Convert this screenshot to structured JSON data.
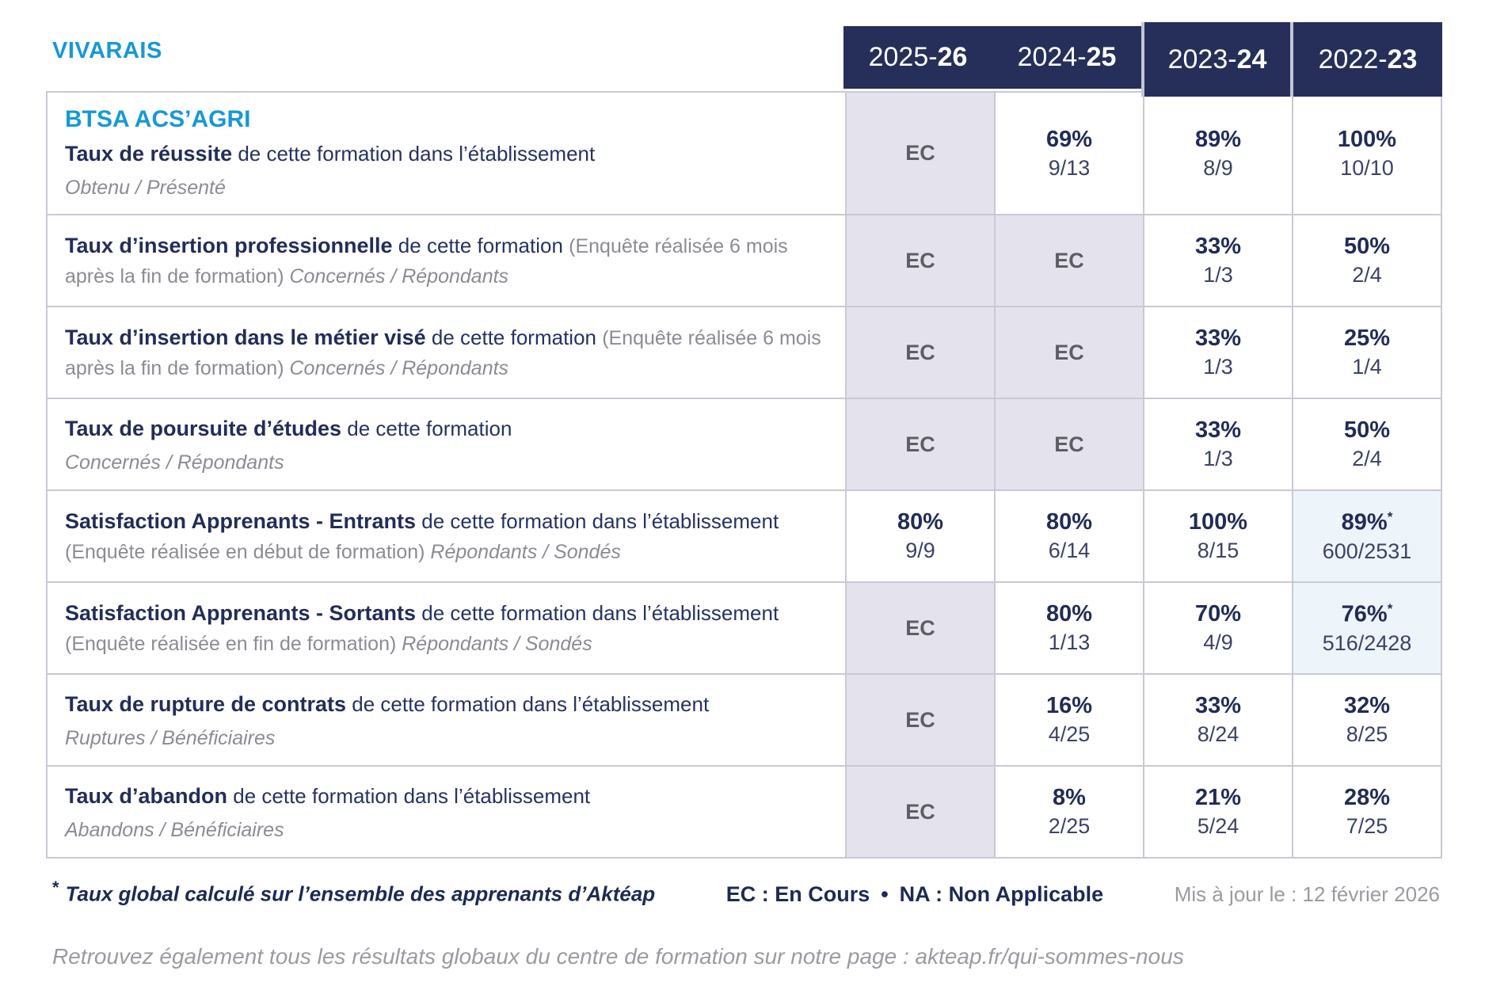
{
  "brand": "VIVARAIS",
  "colors": {
    "accent_blue": "#1798d6",
    "navy": "#232d58",
    "header_bg": "#252f5a",
    "ec_cell_bg": "#e4e3ed",
    "star_cell_bg": "#edf5fa",
    "gray_text": "#8b8b94",
    "border": "#c9c9d4"
  },
  "years": [
    {
      "label": "2025-",
      "bold": "26"
    },
    {
      "label": "2024-",
      "bold": "25"
    },
    {
      "label": "2023-",
      "bold": "24"
    },
    {
      "label": "2022-",
      "bold": "23"
    }
  ],
  "rows": [
    {
      "name": "taux-de-reussite",
      "heading": "BTSA ACS’AGRI",
      "segments": [
        {
          "style": "bold",
          "text": "Taux de réussite"
        },
        {
          "style": "navy",
          "text": " de cette formation dans l’établissement"
        }
      ],
      "subline": "Obtenu / Présenté",
      "cells": [
        {
          "type": "ec",
          "text": "EC"
        },
        {
          "type": "pct",
          "pct": "69%",
          "frac": "9/13"
        },
        {
          "type": "pct",
          "pct": "89%",
          "frac": "8/9"
        },
        {
          "type": "pct",
          "pct": "100%",
          "frac": "10/10"
        }
      ]
    },
    {
      "name": "taux-insertion-professionnelle",
      "segments": [
        {
          "style": "bold",
          "text": "Taux d’insertion professionnelle"
        },
        {
          "style": "navy",
          "text": " de cette formation "
        },
        {
          "style": "gray",
          "text": "(Enquête réalisée 6 mois après la fin de formation) "
        },
        {
          "style": "italic",
          "text": "Concernés / Répondants"
        }
      ],
      "cells": [
        {
          "type": "ec",
          "text": "EC"
        },
        {
          "type": "ec",
          "text": "EC"
        },
        {
          "type": "pct",
          "pct": "33%",
          "frac": "1/3"
        },
        {
          "type": "pct",
          "pct": "50%",
          "frac": "2/4"
        }
      ]
    },
    {
      "name": "taux-insertion-metier-vise",
      "segments": [
        {
          "style": "bold",
          "text": "Taux d’insertion dans le métier visé"
        },
        {
          "style": "navy",
          "text": " de cette formation "
        },
        {
          "style": "gray",
          "text": "(Enquête réalisée 6 mois après la fin de formation) "
        },
        {
          "style": "italic",
          "text": "Concernés / Répondants"
        }
      ],
      "cells": [
        {
          "type": "ec",
          "text": "EC"
        },
        {
          "type": "ec",
          "text": "EC"
        },
        {
          "type": "pct",
          "pct": "33%",
          "frac": "1/3"
        },
        {
          "type": "pct",
          "pct": "25%",
          "frac": "1/4"
        }
      ]
    },
    {
      "name": "taux-poursuite-etudes",
      "segments": [
        {
          "style": "bold",
          "text": "Taux de poursuite d’études"
        },
        {
          "style": "navy",
          "text": " de cette formation"
        }
      ],
      "subline": "Concernés / Répondants",
      "cells": [
        {
          "type": "ec",
          "text": "EC"
        },
        {
          "type": "ec",
          "text": "EC"
        },
        {
          "type": "pct",
          "pct": "33%",
          "frac": "1/3"
        },
        {
          "type": "pct",
          "pct": "50%",
          "frac": "2/4"
        }
      ]
    },
    {
      "name": "satisfaction-apprenants-entrants",
      "segments": [
        {
          "style": "bold",
          "text": "Satisfaction Apprenants - Entrants"
        },
        {
          "style": "navy",
          "text": " de cette formation dans l’établissement "
        },
        {
          "style": "gray",
          "text": "(Enquête réalisée en début de formation) "
        },
        {
          "style": "italic",
          "text": "Répondants / Sondés"
        }
      ],
      "cells": [
        {
          "type": "pct",
          "pct": "80%",
          "frac": "9/9"
        },
        {
          "type": "pct",
          "pct": "80%",
          "frac": "6/14"
        },
        {
          "type": "pct",
          "pct": "100%",
          "frac": "8/15"
        },
        {
          "type": "pct-star",
          "pct": "89%",
          "star": "*",
          "frac": "600/2531"
        }
      ]
    },
    {
      "name": "satisfaction-apprenants-sortants",
      "segments": [
        {
          "style": "bold",
          "text": "Satisfaction Apprenants - Sortants"
        },
        {
          "style": "navy",
          "text": " de cette formation dans l’établissement "
        },
        {
          "style": "gray",
          "text": "(Enquête réalisée en fin de formation) "
        },
        {
          "style": "italic",
          "text": "Répondants / Sondés"
        }
      ],
      "cells": [
        {
          "type": "ec",
          "text": "EC"
        },
        {
          "type": "pct",
          "pct": "80%",
          "frac": "1/13"
        },
        {
          "type": "pct",
          "pct": "70%",
          "frac": "4/9"
        },
        {
          "type": "pct-star",
          "pct": "76%",
          "star": "*",
          "frac": "516/2428"
        }
      ]
    },
    {
      "name": "taux-rupture-contrats",
      "segments": [
        {
          "style": "bold",
          "text": "Taux de rupture de contrats"
        },
        {
          "style": "navy",
          "text": " de cette formation dans l’établissement"
        }
      ],
      "subline": "Ruptures / Bénéficiaires",
      "cells": [
        {
          "type": "ec",
          "text": "EC"
        },
        {
          "type": "pct",
          "pct": "16%",
          "frac": "4/25"
        },
        {
          "type": "pct",
          "pct": "33%",
          "frac": "8/24"
        },
        {
          "type": "pct",
          "pct": "32%",
          "frac": "8/25"
        }
      ]
    },
    {
      "name": "taux-abandon",
      "segments": [
        {
          "style": "bold",
          "text": "Taux d’abandon"
        },
        {
          "style": "navy",
          "text": " de cette formation dans l’établissement"
        }
      ],
      "subline": "Abandons / Bénéficiaires",
      "cells": [
        {
          "type": "ec",
          "text": "EC"
        },
        {
          "type": "pct",
          "pct": "8%",
          "frac": "2/25"
        },
        {
          "type": "pct",
          "pct": "21%",
          "frac": "5/24"
        },
        {
          "type": "pct",
          "pct": "28%",
          "frac": "7/25"
        }
      ]
    }
  ],
  "footer": {
    "star": "*",
    "star_note": "Taux global calculé sur l’ensemble des apprenants d’Aktéap",
    "legend_ec": "EC : En Cours",
    "legend_sep": "•",
    "legend_na": "NA : Non Applicable",
    "updated": "Mis à jour le : 12 février 2026",
    "bottom_note": "Retrouvez également tous les résultats globaux du centre de formation sur notre page : akteap.fr/qui-sommes-nous"
  }
}
